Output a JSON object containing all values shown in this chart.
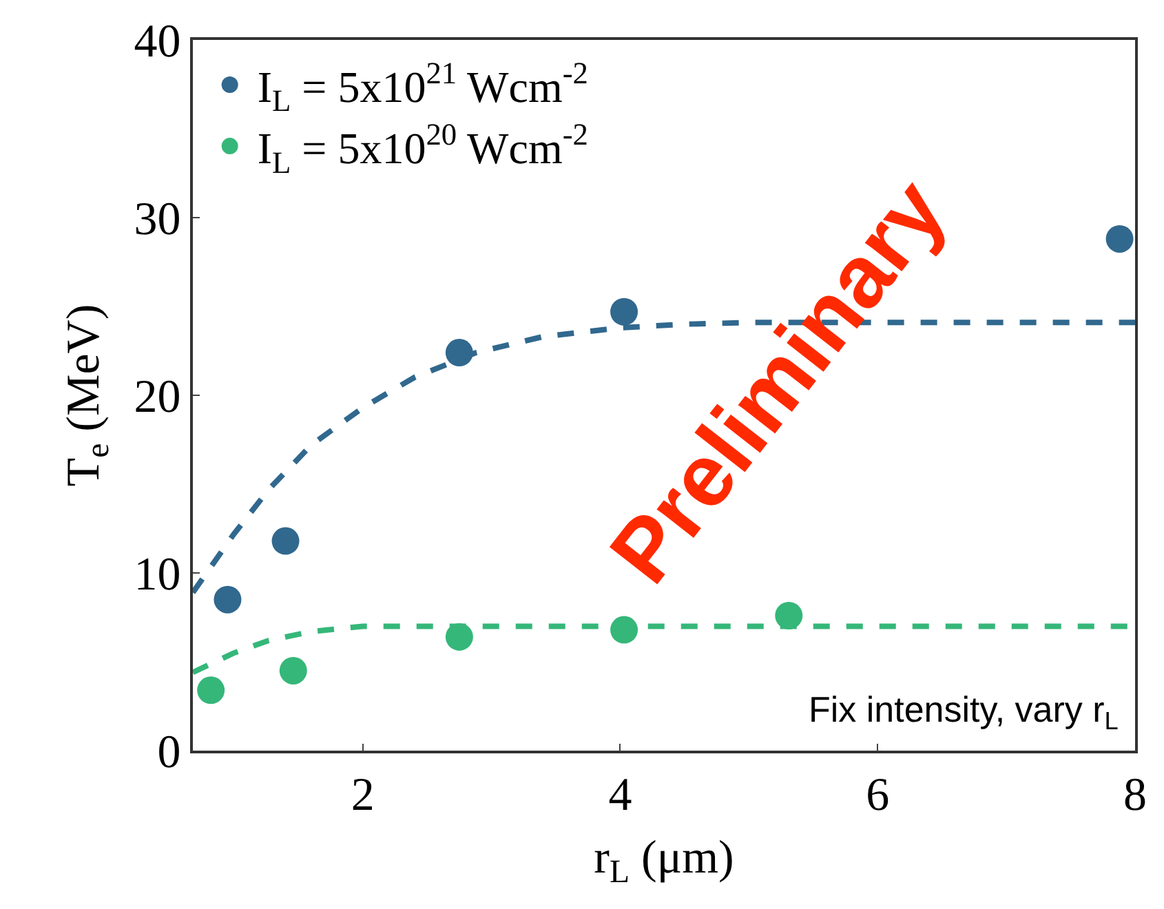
{
  "chart_data": {
    "type": "scatter",
    "xlabel": "r$_{L}$ (μm)",
    "ylabel": "T$_{e}$ (MeV)",
    "xlim": [
      0.68,
      8
    ],
    "xticks": [
      2,
      4,
      6,
      8
    ],
    "ylim": [
      0,
      40
    ],
    "yticks": [
      0,
      10,
      20,
      30,
      40
    ],
    "legend": "top left",
    "marker": "circle",
    "series": [
      {
        "name": "I$_{L}$ = 5x10$^{21}$ Wcm$^{-2}$",
        "color": "#31688e",
        "x": [
          0.95,
          1.4,
          2.75,
          4.03,
          7.88
        ],
        "values": [
          8.5,
          11.8,
          22.4,
          24.7,
          28.8
        ]
      },
      {
        "name": "I$_{L}$ = 5x10$^{20}$ Wcm$^{-2}$",
        "color": "#35b779",
        "x": [
          0.82,
          1.46,
          2.75,
          4.03,
          5.31
        ],
        "values": [
          3.4,
          4.5,
          6.4,
          6.8,
          7.6
        ]
      },
      {
        "type": "line",
        "line_style": "dashed",
        "marker": "none",
        "color": "#31688e",
        "x": [
          0.68,
          1.0,
          1.27,
          1.6,
          2.0,
          2.4,
          2.88,
          3.4,
          4.0,
          4.5,
          5.03,
          5.5,
          6.0,
          7.0,
          8.0
        ],
        "values": [
          8.9,
          12.2,
          14.7,
          17.2,
          19.3,
          21.0,
          22.4,
          23.3,
          23.8,
          24.0,
          24.1,
          24.1,
          24.1,
          24.1,
          24.1
        ]
      },
      {
        "type": "line",
        "line_style": "dashed",
        "marker": "none",
        "color": "#35b779",
        "x": [
          0.68,
          1.0,
          1.27,
          1.6,
          2.0,
          2.5,
          3.0,
          4.0,
          6.0,
          8.0
        ],
        "values": [
          4.4,
          5.5,
          6.2,
          6.7,
          7.0,
          7.0,
          7.0,
          7.0,
          7.0,
          7.0
        ]
      }
    ],
    "annotations": [
      "Preliminary",
      "Fix intensity, vary r$_{L}$"
    ]
  }
}
